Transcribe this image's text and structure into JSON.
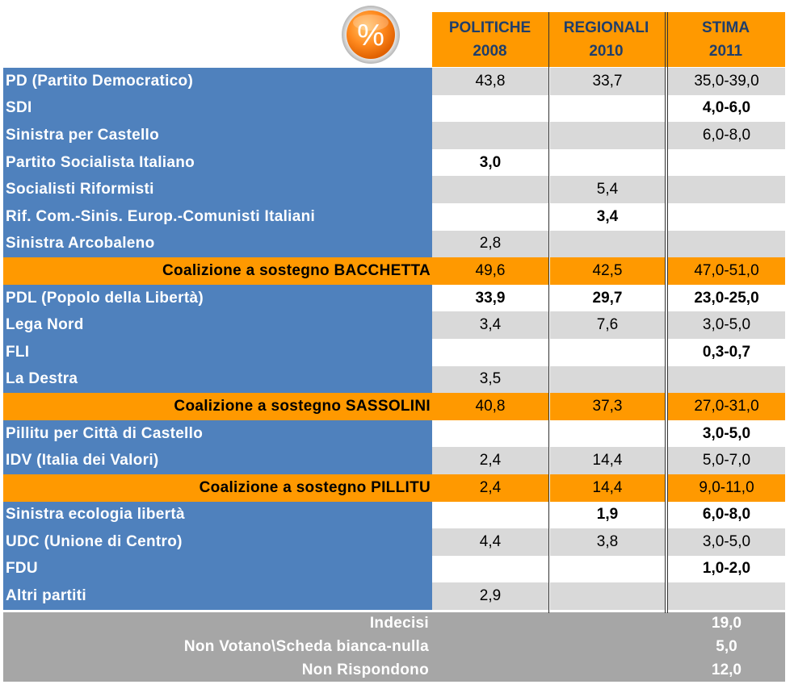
{
  "badge": {
    "symbol": "%"
  },
  "header": {
    "columns": [
      {
        "line1": "POLITICHE",
        "line2": "2008"
      },
      {
        "line1": "REGIONALI",
        "line2": "2010"
      },
      {
        "line1": "STIMA",
        "line2": "2011"
      }
    ]
  },
  "colors": {
    "party": "#4f81bd",
    "coalition": "#ff9900",
    "stripe": "#d9d9d9",
    "footer": "#a6a6a6"
  },
  "chart_data": {
    "type": "table",
    "columns": [
      "POLITICHE 2008",
      "REGIONALI 2010",
      "STIMA 2011"
    ],
    "rows": [
      {
        "label": "PD (Partito Democratico)",
        "kind": "party",
        "values": [
          "43,8",
          "33,7",
          "35,0-39,0"
        ],
        "bold": [
          false,
          false,
          false
        ]
      },
      {
        "label": "SDI",
        "kind": "party",
        "values": [
          "",
          "",
          "4,0-6,0"
        ],
        "bold": [
          false,
          false,
          true
        ]
      },
      {
        "label": "Sinistra per Castello",
        "kind": "party",
        "values": [
          "",
          "",
          "6,0-8,0"
        ],
        "bold": [
          false,
          false,
          false
        ]
      },
      {
        "label": "Partito Socialista Italiano",
        "kind": "party",
        "values": [
          "3,0",
          "",
          ""
        ],
        "bold": [
          true,
          false,
          false
        ]
      },
      {
        "label": "Socialisti Riformisti",
        "kind": "party",
        "values": [
          "",
          "5,4",
          ""
        ],
        "bold": [
          false,
          false,
          false
        ]
      },
      {
        "label": "Rif. Com.-Sinis. Europ.-Comunisti Italiani",
        "kind": "party",
        "values": [
          "",
          "3,4",
          ""
        ],
        "bold": [
          false,
          true,
          false
        ]
      },
      {
        "label": "Sinistra Arcobaleno",
        "kind": "party",
        "values": [
          "2,8",
          "",
          ""
        ],
        "bold": [
          false,
          false,
          false
        ]
      },
      {
        "label": "Coalizione a sostegno BACCHETTA",
        "kind": "coalition",
        "values": [
          "49,6",
          "42,5",
          "47,0-51,0"
        ],
        "bold": [
          false,
          false,
          false
        ]
      },
      {
        "label": "PDL (Popolo della Libertà)",
        "kind": "party",
        "values": [
          "33,9",
          "29,7",
          "23,0-25,0"
        ],
        "bold": [
          true,
          true,
          true
        ]
      },
      {
        "label": "Lega Nord",
        "kind": "party",
        "values": [
          "3,4",
          "7,6",
          "3,0-5,0"
        ],
        "bold": [
          false,
          false,
          false
        ]
      },
      {
        "label": "FLI",
        "kind": "party",
        "values": [
          "",
          "",
          "0,3-0,7"
        ],
        "bold": [
          false,
          false,
          true
        ]
      },
      {
        "label": "La Destra",
        "kind": "party",
        "values": [
          "3,5",
          "",
          ""
        ],
        "bold": [
          false,
          false,
          false
        ]
      },
      {
        "label": "Coalizione a sostegno SASSOLINI",
        "kind": "coalition",
        "values": [
          "40,8",
          "37,3",
          "27,0-31,0"
        ],
        "bold": [
          false,
          false,
          false
        ]
      },
      {
        "label": "Pillitu per Città di Castello",
        "kind": "party",
        "values": [
          "",
          "",
          "3,0-5,0"
        ],
        "bold": [
          false,
          false,
          true
        ]
      },
      {
        "label": "IDV (Italia dei Valori)",
        "kind": "party",
        "values": [
          "2,4",
          "14,4",
          "5,0-7,0"
        ],
        "bold": [
          false,
          false,
          false
        ]
      },
      {
        "label": "Coalizione a sostegno PILLITU",
        "kind": "coalition",
        "values": [
          "2,4",
          "14,4",
          "9,0-11,0"
        ],
        "bold": [
          false,
          false,
          false
        ]
      },
      {
        "label": "Sinistra ecologia libertà",
        "kind": "party",
        "values": [
          "",
          "1,9",
          "6,0-8,0"
        ],
        "bold": [
          false,
          true,
          true
        ]
      },
      {
        "label": "UDC (Unione di Centro)",
        "kind": "party",
        "values": [
          "4,4",
          "3,8",
          "3,0-5,0"
        ],
        "bold": [
          false,
          false,
          false
        ]
      },
      {
        "label": "FDU",
        "kind": "party",
        "values": [
          "",
          "",
          "1,0-2,0"
        ],
        "bold": [
          false,
          false,
          true
        ]
      },
      {
        "label": "Altri partiti",
        "kind": "party",
        "values": [
          "2,9",
          "",
          ""
        ],
        "bold": [
          false,
          false,
          false
        ]
      }
    ],
    "footer_rows": [
      {
        "label": "Indecisi",
        "value": "19,0"
      },
      {
        "label": "Non Votano\\Scheda bianca-nulla",
        "value": "5,0"
      },
      {
        "label": "Non Rispondono",
        "value": "12,0"
      }
    ]
  }
}
